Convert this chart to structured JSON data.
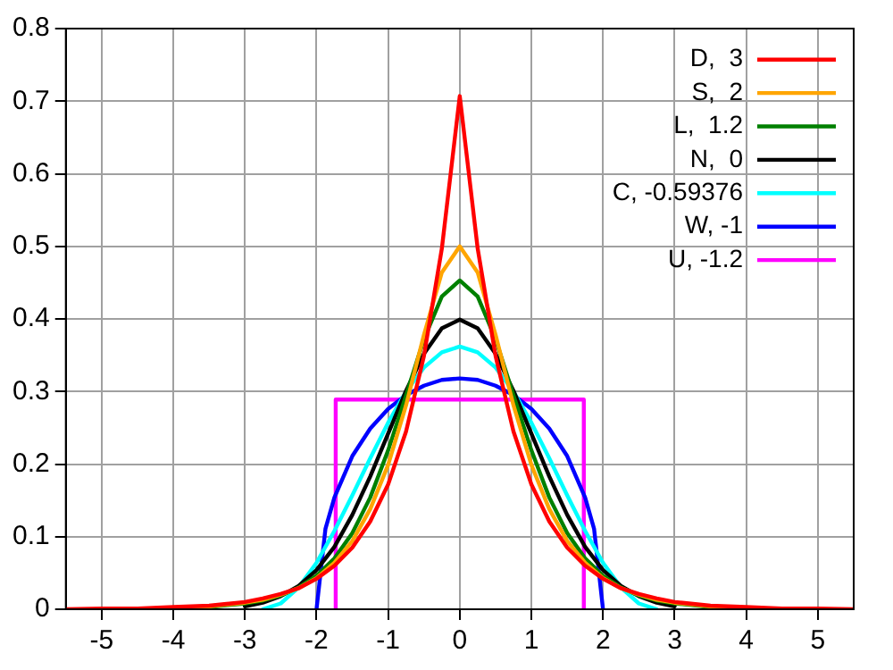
{
  "chart_data": {
    "type": "line",
    "x": [
      -5.5,
      -5,
      -4.5,
      -4,
      -3.5,
      -3,
      -2.75,
      -2.5,
      -2.25,
      -2,
      -1.75,
      -1.5,
      -1.25,
      -1,
      -0.75,
      -0.5,
      -0.25,
      0,
      0.25,
      0.5,
      0.75,
      1,
      1.25,
      1.5,
      1.75,
      2,
      2.25,
      2.5,
      2.75,
      3,
      3.5,
      4,
      4.5,
      5,
      5.5
    ],
    "series": [
      {
        "name": "D,  3",
        "color": "#ff0000",
        "values": [
          0.0,
          0.001,
          0.001,
          0.003,
          0.005,
          0.01,
          0.015,
          0.021,
          0.029,
          0.042,
          0.06,
          0.085,
          0.121,
          0.172,
          0.245,
          0.349,
          0.497,
          0.707,
          0.497,
          0.349,
          0.245,
          0.172,
          0.121,
          0.085,
          0.06,
          0.042,
          0.029,
          0.021,
          0.015,
          0.01,
          0.005,
          0.003,
          0.001,
          0.001,
          0.0
        ]
      },
      {
        "name": "S,  2",
        "color": "#ffa500",
        "values": [
          null,
          null,
          null,
          0.002,
          0.004,
          0.009,
          0.013,
          0.02,
          0.029,
          0.043,
          0.064,
          0.094,
          0.138,
          0.199,
          0.281,
          0.378,
          0.464,
          0.5,
          0.464,
          0.378,
          0.281,
          0.199,
          0.138,
          0.094,
          0.064,
          0.043,
          0.029,
          0.02,
          0.013,
          0.009,
          0.004,
          0.002,
          null,
          null,
          null
        ]
      },
      {
        "name": "L,  1.2",
        "color": "#008000",
        "values": [
          null,
          null,
          null,
          null,
          0.003,
          0.008,
          0.012,
          0.019,
          0.03,
          0.046,
          0.07,
          0.105,
          0.154,
          0.219,
          0.295,
          0.372,
          0.431,
          0.453,
          0.431,
          0.372,
          0.295,
          0.219,
          0.154,
          0.105,
          0.07,
          0.046,
          0.03,
          0.019,
          0.012,
          0.008,
          0.003,
          null,
          null,
          null,
          null
        ]
      },
      {
        "name": "N,  0",
        "color": "#000000",
        "values": [
          null,
          null,
          null,
          null,
          null,
          0.004,
          0.009,
          0.018,
          0.032,
          0.054,
          0.086,
          0.13,
          0.183,
          0.242,
          0.301,
          0.352,
          0.387,
          0.399,
          0.387,
          0.352,
          0.301,
          0.242,
          0.183,
          0.13,
          0.086,
          0.054,
          0.032,
          0.018,
          0.009,
          0.004,
          null,
          null,
          null,
          null,
          null
        ]
      },
      {
        "name": "C, -0.59376",
        "color": "#00ffff",
        "values": [
          null,
          null,
          null,
          null,
          null,
          null,
          0,
          0.008,
          0.03,
          0.064,
          0.108,
          0.157,
          0.208,
          0.257,
          0.3,
          0.333,
          0.354,
          0.362,
          0.354,
          0.333,
          0.3,
          0.257,
          0.208,
          0.157,
          0.108,
          0.064,
          0.03,
          0.008,
          0,
          null,
          null,
          null,
          null,
          null,
          null
        ]
      },
      {
        "name": "W, -1",
        "color": "#0000ff",
        "x": [
          -2,
          -1.875,
          -1.75,
          -1.5,
          -1.25,
          -1,
          -0.75,
          -0.5,
          -0.25,
          0,
          0.25,
          0.5,
          0.75,
          1,
          1.25,
          1.5,
          1.75,
          1.875,
          2
        ],
        "values": [
          0,
          0.111,
          0.154,
          0.211,
          0.249,
          0.276,
          0.295,
          0.308,
          0.316,
          0.318,
          0.316,
          0.308,
          0.295,
          0.276,
          0.249,
          0.211,
          0.154,
          0.111,
          0
        ]
      },
      {
        "name": "U, -1.2",
        "color": "#ff00ff",
        "x": [
          -1.732,
          -1.732,
          1.732,
          1.732
        ],
        "values": [
          0,
          0.289,
          0.289,
          0
        ]
      }
    ],
    "xlim": [
      -5.5,
      5.5
    ],
    "xticks": [
      -5,
      -4,
      -3,
      -2,
      -1,
      0,
      1,
      2,
      3,
      4,
      5
    ],
    "ylim": [
      0,
      0.8
    ],
    "yticks": [
      0,
      0.1,
      0.2,
      0.3,
      0.4,
      0.5,
      0.6,
      0.7,
      0.8
    ],
    "grid": true,
    "legend": "top right",
    "marker": "none",
    "line_style": "solid"
  }
}
